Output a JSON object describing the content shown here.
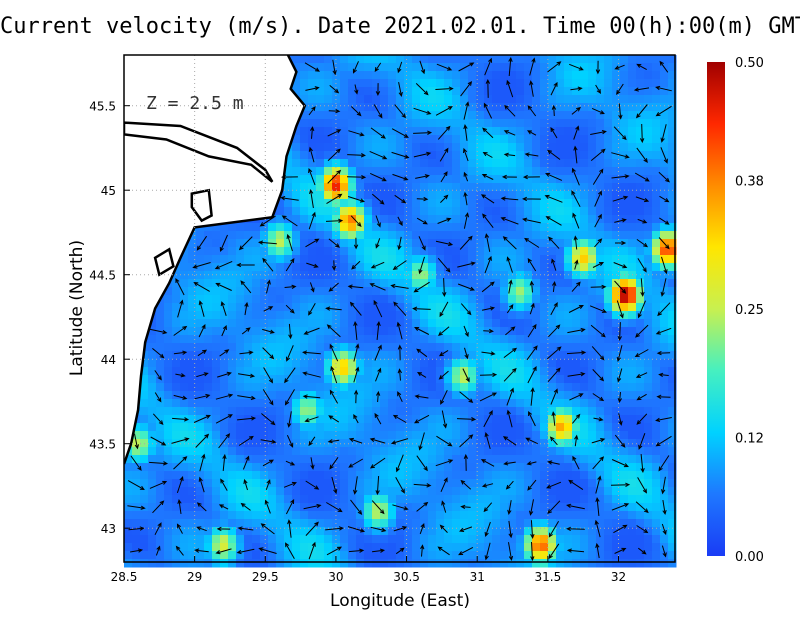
{
  "title": "Current velocity (m/s). Date 2021.02.01. Time 00(h):00(m) GMT",
  "depth_label": "Z = 2.5 m",
  "chart_data": {
    "type": "heatmap",
    "title": "Current velocity (m/s). Date 2021.02.01. Time 00(h):00(m) GMT",
    "xlabel": "Longitude (East)",
    "ylabel": "Latitude (North)",
    "xlim": [
      28.5,
      32.4
    ],
    "ylim": [
      42.8,
      45.8
    ],
    "x_ticks": [
      "28.5",
      "29",
      "29.5",
      "30",
      "30.5",
      "31",
      "31.5",
      "32"
    ],
    "x_tick_values": [
      28.5,
      29,
      29.5,
      30,
      30.5,
      31,
      31.5,
      32
    ],
    "y_ticks": [
      "43",
      "43.5",
      "44",
      "44.5",
      "45",
      "45.5"
    ],
    "y_tick_values": [
      43,
      43.5,
      44,
      44.5,
      45,
      45.5
    ],
    "grid": "dotted",
    "colorbar": {
      "range": [
        0.0,
        0.5
      ],
      "labels": [
        "0.50",
        "0.38",
        "0.25",
        "0.12",
        "0.00"
      ],
      "label_values": [
        0.5,
        0.38,
        0.25,
        0.12,
        0.0
      ],
      "colors": [
        "#1a3cf5",
        "#1e78ff",
        "#00d2ff",
        "#46f0c0",
        "#c8f050",
        "#ffe600",
        "#ff8c00",
        "#ff2800",
        "#a00000"
      ]
    },
    "background_level": 0.06,
    "hotspots": [
      {
        "lon": 30.0,
        "lat": 45.03,
        "value": 0.42
      },
      {
        "lon": 30.1,
        "lat": 44.82,
        "value": 0.36
      },
      {
        "lon": 30.05,
        "lat": 43.95,
        "value": 0.3
      },
      {
        "lon": 32.05,
        "lat": 44.38,
        "value": 0.47
      },
      {
        "lon": 31.75,
        "lat": 44.6,
        "value": 0.3
      },
      {
        "lon": 32.35,
        "lat": 44.65,
        "value": 0.4
      },
      {
        "lon": 31.6,
        "lat": 43.6,
        "value": 0.33
      },
      {
        "lon": 31.45,
        "lat": 42.9,
        "value": 0.38
      },
      {
        "lon": 29.6,
        "lat": 44.7,
        "value": 0.22
      },
      {
        "lon": 29.2,
        "lat": 42.9,
        "value": 0.24
      },
      {
        "lon": 30.3,
        "lat": 43.1,
        "value": 0.22
      },
      {
        "lon": 29.8,
        "lat": 43.7,
        "value": 0.2
      },
      {
        "lon": 28.6,
        "lat": 43.5,
        "value": 0.22
      },
      {
        "lon": 30.9,
        "lat": 43.9,
        "value": 0.22
      },
      {
        "lon": 31.3,
        "lat": 44.4,
        "value": 0.2
      },
      {
        "lon": 30.6,
        "lat": 44.5,
        "value": 0.2
      }
    ],
    "coastline": [
      [
        29.66,
        45.8
      ],
      [
        29.72,
        45.7
      ],
      [
        29.68,
        45.6
      ],
      [
        29.78,
        45.5
      ],
      [
        29.72,
        45.38
      ],
      [
        29.65,
        45.2
      ],
      [
        29.62,
        45.0
      ],
      [
        29.55,
        44.84
      ],
      [
        29.0,
        44.78
      ],
      [
        28.9,
        44.6
      ],
      [
        28.82,
        44.45
      ],
      [
        28.72,
        44.3
      ],
      [
        28.65,
        44.1
      ],
      [
        28.62,
        43.9
      ],
      [
        28.6,
        43.7
      ],
      [
        28.55,
        43.5
      ],
      [
        28.5,
        43.38
      ]
    ],
    "lakes": [
      [
        [
          28.98,
          44.98
        ],
        [
          29.1,
          45.0
        ],
        [
          29.12,
          44.85
        ],
        [
          29.05,
          44.82
        ],
        [
          28.98,
          44.9
        ]
      ],
      [
        [
          28.5,
          45.4
        ],
        [
          28.9,
          45.38
        ],
        [
          29.3,
          45.25
        ],
        [
          29.5,
          45.12
        ],
        [
          29.55,
          45.05
        ],
        [
          29.4,
          45.15
        ],
        [
          29.1,
          45.2
        ],
        [
          28.8,
          45.3
        ],
        [
          28.5,
          45.33
        ]
      ],
      [
        [
          28.72,
          44.6
        ],
        [
          28.82,
          44.65
        ],
        [
          28.85,
          44.55
        ],
        [
          28.75,
          44.5
        ]
      ]
    ]
  }
}
